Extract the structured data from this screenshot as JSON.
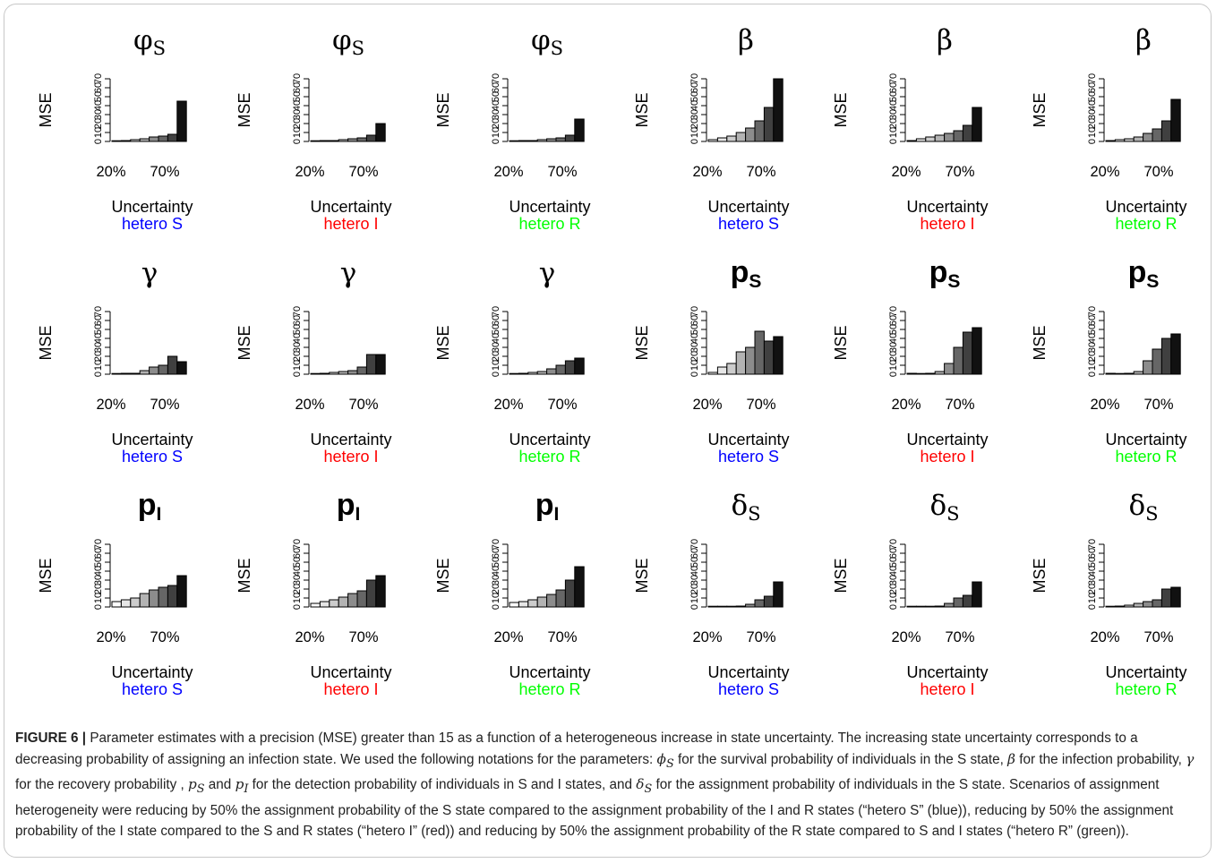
{
  "caption": {
    "label": "FIGURE 6 |",
    "text_html": "Parameter estimates with a precision (MSE) greater than 15 as a function of a heterogeneous increase in state uncertainty. The increasing state uncertainty corresponds to a decreasing probability of assigning an infection state. We used the following notations for the parameters: <i>ϕ<sub>S</sub></i> for the survival probability of individuals in the S state, <i>β</i> for the infection probability, <i>γ</i> for the recovery probability , <i>p<sub>S</sub></i> and <i>p<sub>I</sub></i> for the detection probability of individuals in S and I states, and <i>δ<sub>S</sub></i> for the assignment probability of individuals in the S state. Scenarios of assignment heterogeneity were reducing by 50% the assignment probability of the S state compared to the assignment probability of the I and R states (“hetero S” (blue)), reducing by 50% the assignment probability of the I state compared to the S and R states (“hetero I” (red)) and reducing by 50% the assignment probability of the R state compared to S and I states (“hetero R” (green))."
  },
  "scenario_colors": {
    "hetero S": "#0000ff",
    "hetero I": "#ff0000",
    "hetero R": "#00ff00"
  },
  "chart_data": [
    {
      "type": "bar",
      "title": "φS",
      "scenario": "hetero S",
      "ylabel": "MSE",
      "xlabel": "Uncertainty",
      "xticks": [
        "20%",
        "70%"
      ],
      "yticks": [
        0,
        10,
        20,
        30,
        40,
        50,
        60,
        70
      ],
      "ylim": [
        0,
        70
      ],
      "values": [
        0.5,
        1,
        2,
        3,
        5,
        6,
        8,
        45
      ]
    },
    {
      "type": "bar",
      "title": "φS",
      "scenario": "hetero I",
      "ylabel": "MSE",
      "xlabel": "Uncertainty",
      "xticks": [
        "20%",
        "70%"
      ],
      "yticks": [
        0,
        10,
        20,
        30,
        40,
        50,
        60,
        70
      ],
      "ylim": [
        0,
        70
      ],
      "values": [
        0.5,
        1,
        1,
        2,
        3,
        4,
        7,
        20
      ]
    },
    {
      "type": "bar",
      "title": "φS",
      "scenario": "hetero R",
      "ylabel": "MSE",
      "xlabel": "Uncertainty",
      "xticks": [
        "20%",
        "70%"
      ],
      "yticks": [
        0,
        10,
        20,
        30,
        40,
        50,
        60,
        70
      ],
      "ylim": [
        0,
        70
      ],
      "values": [
        0.5,
        1,
        1,
        2,
        3,
        4,
        7,
        25
      ]
    },
    {
      "type": "bar",
      "title": "β",
      "scenario": "hetero S",
      "ylabel": "MSE",
      "xlabel": "Uncertainty",
      "xticks": [
        "20%",
        "70%"
      ],
      "yticks": [
        0,
        10,
        20,
        30,
        40,
        50,
        60,
        70
      ],
      "ylim": [
        0,
        70
      ],
      "values": [
        2,
        4,
        6,
        10,
        15,
        23,
        38,
        70
      ]
    },
    {
      "type": "bar",
      "title": "β",
      "scenario": "hetero I",
      "ylabel": "MSE",
      "xlabel": "Uncertainty",
      "xticks": [
        "20%",
        "70%"
      ],
      "yticks": [
        0,
        10,
        20,
        30,
        40,
        50,
        60,
        70
      ],
      "ylim": [
        0,
        70
      ],
      "values": [
        1,
        3,
        5,
        7,
        9,
        12,
        18,
        38
      ]
    },
    {
      "type": "bar",
      "title": "β",
      "scenario": "hetero R",
      "ylabel": "MSE",
      "xlabel": "Uncertainty",
      "xticks": [
        "20%",
        "70%"
      ],
      "yticks": [
        0,
        10,
        20,
        30,
        40,
        50,
        60,
        70
      ],
      "ylim": [
        0,
        70
      ],
      "values": [
        1,
        2,
        3,
        5,
        9,
        14,
        23,
        47
      ]
    },
    {
      "type": "bar",
      "title": "γ",
      "scenario": "hetero S",
      "ylabel": "MSE",
      "xlabel": "Uncertainty",
      "xticks": [
        "20%",
        "70%"
      ],
      "yticks": [
        0,
        10,
        20,
        30,
        40,
        50,
        60,
        70
      ],
      "ylim": [
        0,
        70
      ],
      "values": [
        0.5,
        1,
        1,
        4,
        8,
        10,
        20,
        14
      ]
    },
    {
      "type": "bar",
      "title": "γ",
      "scenario": "hetero I",
      "ylabel": "MSE",
      "xlabel": "Uncertainty",
      "xticks": [
        "20%",
        "70%"
      ],
      "yticks": [
        0,
        10,
        20,
        30,
        40,
        50,
        60,
        70
      ],
      "ylim": [
        0,
        70
      ],
      "values": [
        0.5,
        1,
        2,
        3,
        4,
        8,
        22,
        22
      ]
    },
    {
      "type": "bar",
      "title": "γ",
      "scenario": "hetero R",
      "ylabel": "MSE",
      "xlabel": "Uncertainty",
      "xticks": [
        "20%",
        "70%"
      ],
      "yticks": [
        0,
        10,
        20,
        30,
        40,
        50,
        60,
        70
      ],
      "ylim": [
        0,
        70
      ],
      "values": [
        0.5,
        1,
        2,
        3,
        6,
        10,
        15,
        18
      ]
    },
    {
      "type": "bar",
      "title": "pS",
      "scenario": "hetero S",
      "ylabel": "MSE",
      "xlabel": "Uncertainty",
      "xticks": [
        "20%",
        "70%"
      ],
      "yticks": [
        0,
        10,
        20,
        30,
        40,
        50,
        60,
        70
      ],
      "ylim": [
        0,
        70
      ],
      "values": [
        2,
        8,
        12,
        25,
        30,
        48,
        37,
        42
      ]
    },
    {
      "type": "bar",
      "title": "pS",
      "scenario": "hetero I",
      "ylabel": "MSE",
      "xlabel": "Uncertainty",
      "xticks": [
        "20%",
        "70%"
      ],
      "yticks": [
        0,
        10,
        20,
        30,
        40,
        50,
        60,
        70
      ],
      "ylim": [
        0,
        70
      ],
      "values": [
        1,
        0.5,
        1,
        3,
        12,
        30,
        47,
        52
      ]
    },
    {
      "type": "bar",
      "title": "pS",
      "scenario": "hetero R",
      "ylabel": "MSE",
      "xlabel": "Uncertainty",
      "xticks": [
        "20%",
        "70%"
      ],
      "yticks": [
        0,
        10,
        20,
        30,
        40,
        50,
        60,
        70
      ],
      "ylim": [
        0,
        70
      ],
      "values": [
        1,
        0.5,
        1,
        3,
        15,
        28,
        40,
        45
      ]
    },
    {
      "type": "bar",
      "title": "pI",
      "scenario": "hetero S",
      "ylabel": "MSE",
      "xlabel": "Uncertainty",
      "xticks": [
        "20%",
        "70%"
      ],
      "yticks": [
        0,
        10,
        20,
        30,
        40,
        50,
        60,
        70
      ],
      "ylim": [
        0,
        70
      ],
      "values": [
        6,
        8,
        10,
        15,
        19,
        22,
        24,
        35
      ]
    },
    {
      "type": "bar",
      "title": "pI",
      "scenario": "hetero I",
      "ylabel": "MSE",
      "xlabel": "Uncertainty",
      "xticks": [
        "20%",
        "70%"
      ],
      "yticks": [
        0,
        10,
        20,
        30,
        40,
        50,
        60,
        70
      ],
      "ylim": [
        0,
        70
      ],
      "values": [
        4,
        6,
        8,
        11,
        15,
        18,
        30,
        35
      ]
    },
    {
      "type": "bar",
      "title": "pI",
      "scenario": "hetero R",
      "ylabel": "MSE",
      "xlabel": "Uncertainty",
      "xticks": [
        "20%",
        "70%"
      ],
      "yticks": [
        0,
        10,
        20,
        30,
        40,
        50,
        60,
        70
      ],
      "ylim": [
        0,
        70
      ],
      "values": [
        5,
        6,
        8,
        11,
        14,
        19,
        30,
        45
      ]
    },
    {
      "type": "bar",
      "title": "δS",
      "scenario": "hetero S",
      "ylabel": "MSE",
      "xlabel": "Uncertainty",
      "xticks": [
        "20%",
        "70%"
      ],
      "yticks": [
        0,
        10,
        20,
        30,
        40,
        50,
        60,
        70
      ],
      "ylim": [
        0,
        70
      ],
      "values": [
        0.5,
        0.5,
        0.5,
        1,
        3,
        8,
        12,
        28
      ]
    },
    {
      "type": "bar",
      "title": "δS",
      "scenario": "hetero I",
      "ylabel": "MSE",
      "xlabel": "Uncertainty",
      "xticks": [
        "20%",
        "70%"
      ],
      "yticks": [
        0,
        10,
        20,
        30,
        40,
        50,
        60,
        70
      ],
      "ylim": [
        0,
        70
      ],
      "values": [
        0.5,
        0.5,
        0.5,
        1,
        4,
        10,
        13,
        28
      ]
    },
    {
      "type": "bar",
      "title": "δS",
      "scenario": "hetero R",
      "ylabel": "MSE",
      "xlabel": "Uncertainty",
      "xticks": [
        "20%",
        "70%"
      ],
      "yticks": [
        0,
        10,
        20,
        30,
        40,
        50,
        60,
        70
      ],
      "ylim": [
        0,
        70
      ],
      "values": [
        0.5,
        1,
        2,
        4,
        6,
        8,
        20,
        22
      ]
    }
  ]
}
